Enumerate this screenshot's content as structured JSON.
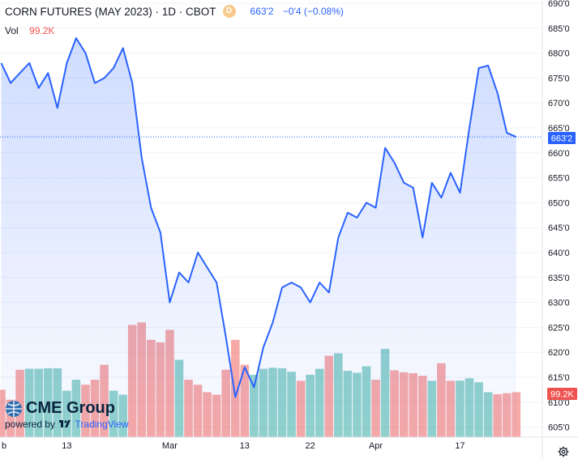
{
  "header": {
    "title": "CORN FUTURES (MAY 2023) · 1D · CBOT",
    "flag_letter": "D",
    "price": "663'2",
    "change": "−0'4 (−0.08%)",
    "vol_label": "Vol",
    "vol_value": "99.2K"
  },
  "price_tag": "663'2",
  "vol_tag": "99.2K",
  "brand": {
    "name": "CME Group",
    "powered": "powered by",
    "tv": "TradingView"
  },
  "colors": {
    "line": "#2962ff",
    "up": "#26a69a",
    "down": "#ef5350",
    "area": "#2962ff"
  },
  "chart_data": {
    "type": "area",
    "title": "CORN FUTURES (MAY 2023)",
    "ylim": [
      605,
      690
    ],
    "y_ticks": [
      "605'0",
      "610'0",
      "615'0",
      "620'0",
      "625'0",
      "630'0",
      "635'0",
      "640'0",
      "645'0",
      "650'0",
      "655'0",
      "660'0",
      "665'0",
      "670'0",
      "675'0",
      "680'0",
      "685'0",
      "690'0"
    ],
    "x_tick_labels": [
      {
        "label": "b",
        "index": 0
      },
      {
        "label": "13",
        "index": 7
      },
      {
        "label": "Mar",
        "index": 18
      },
      {
        "label": "13",
        "index": 26
      },
      {
        "label": "22",
        "index": 33
      },
      {
        "label": "Apr",
        "index": 40
      },
      {
        "label": "17",
        "index": 49
      }
    ],
    "price": [
      678,
      674,
      676,
      678,
      673,
      676,
      669,
      678,
      683,
      680,
      674,
      675,
      677,
      681,
      674,
      659,
      649,
      644,
      630,
      636,
      634,
      640,
      637,
      634,
      623,
      611,
      617,
      613,
      621,
      626,
      633,
      634,
      633,
      630,
      634,
      632,
      643,
      648,
      647,
      650,
      649,
      661,
      658,
      654,
      653,
      643,
      654,
      651,
      656,
      652,
      665,
      677,
      677.5,
      672,
      664,
      663.2
    ],
    "volume_dir": [
      "down",
      "down",
      "down",
      "up",
      "up",
      "up",
      "up",
      "up",
      "up",
      "down",
      "down",
      "down",
      "up",
      "up",
      "down",
      "down",
      "down",
      "down",
      "down",
      "up",
      "down",
      "down",
      "down",
      "down",
      "down",
      "down",
      "down",
      "up",
      "up",
      "up",
      "up",
      "up",
      "down",
      "up",
      "up",
      "down",
      "up",
      "up",
      "up",
      "up",
      "down",
      "up",
      "down",
      "down",
      "down",
      "down",
      "up",
      "down",
      "down",
      "up",
      "up",
      "up",
      "up",
      "down",
      "down",
      "down"
    ],
    "volume_top": [
      612.5,
      610.5,
      616.5,
      616.7,
      616.7,
      616.8,
      616.8,
      612.3,
      614.5,
      613.5,
      614.5,
      617.5,
      612.3,
      611.5,
      625.5,
      626,
      622.5,
      622,
      624.5,
      618.5,
      614.5,
      613.5,
      612,
      611.5,
      616.5,
      622.5,
      617.5,
      615.5,
      616.7,
      616.9,
      616.8,
      616.1,
      614.3,
      615.5,
      616.7,
      619.3,
      619.8,
      616.3,
      615.9,
      617.2,
      614.5,
      620.7,
      616.4,
      616,
      615.8,
      615.3,
      614.3,
      617.8,
      614.3,
      614.3,
      614.8,
      614,
      612,
      611.6,
      611.8,
      612
    ],
    "last_volume": "99.2K"
  }
}
